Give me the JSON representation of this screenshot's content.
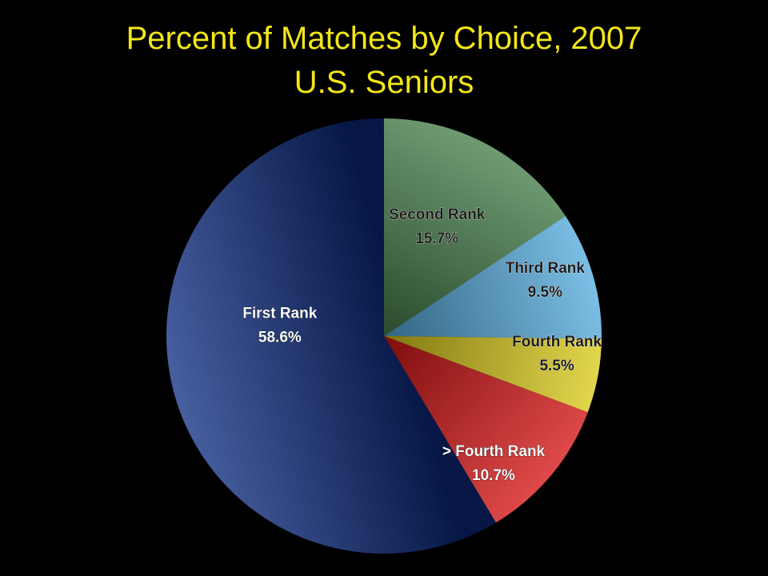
{
  "chart_data": {
    "type": "pie",
    "title": "Percent of Matches by Choice, 2007",
    "subtitle": "U.S. Seniors",
    "slices": [
      {
        "label": "Second Rank",
        "value": 15.7,
        "value_label": "15.7%",
        "color": "#3f7a43"
      },
      {
        "label": "Third Rank",
        "value": 9.5,
        "value_label": "9.5%",
        "color": "#4fa8dc"
      },
      {
        "label": "Fourth Rank",
        "value": 5.5,
        "value_label": "5.5%",
        "color": "#d8c812"
      },
      {
        "label": "> Fourth Rank",
        "value": 10.7,
        "value_label": "10.7%",
        "color": "#d40c0c"
      },
      {
        "label": "First Rank",
        "value": 58.6,
        "value_label": "58.6%",
        "color": "#0a2a80"
      }
    ],
    "start_angle_deg": 0,
    "direction": "clockwise"
  },
  "style": {
    "background": "#000000",
    "title_color": "#f2e619",
    "label_color_light": "#ffffff",
    "label_color_dark": "#1a1a1a"
  }
}
